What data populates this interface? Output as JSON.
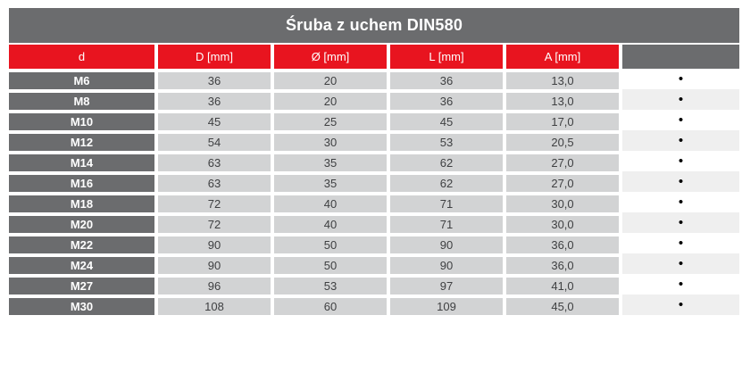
{
  "title": "Śruba z uchem DIN580",
  "colors": {
    "header_gray": "#6b6c6e",
    "accent_red": "#e8141f",
    "cell_gray": "#d2d3d4",
    "row_alt_white": "#ffffff",
    "row_alt_light": "#efefef",
    "cell_text": "#3f4042"
  },
  "table": {
    "columns": [
      {
        "key": "d",
        "label": "d"
      },
      {
        "key": "D-mm",
        "label": "D [mm]"
      },
      {
        "key": "O-mm",
        "label": "Ø [mm]"
      },
      {
        "key": "L-mm",
        "label": "L [mm]"
      },
      {
        "key": "A-mm",
        "label": "A [mm]"
      },
      {
        "key": "availability",
        "label": ""
      }
    ],
    "availability_marker": "•",
    "rows": [
      [
        "M6",
        "36",
        "20",
        "36",
        "13,0"
      ],
      [
        "M8",
        "36",
        "20",
        "36",
        "13,0"
      ],
      [
        "M10",
        "45",
        "25",
        "45",
        "17,0"
      ],
      [
        "M12",
        "54",
        "30",
        "53",
        "20,5"
      ],
      [
        "M14",
        "63",
        "35",
        "62",
        "27,0"
      ],
      [
        "M16",
        "63",
        "35",
        "62",
        "27,0"
      ],
      [
        "M18",
        "72",
        "40",
        "71",
        "30,0"
      ],
      [
        "M20",
        "72",
        "40",
        "71",
        "30,0"
      ],
      [
        "M22",
        "90",
        "50",
        "90",
        "36,0"
      ],
      [
        "M24",
        "90",
        "50",
        "90",
        "36,0"
      ],
      [
        "M27",
        "96",
        "53",
        "97",
        "41,0"
      ],
      [
        "M30",
        "108",
        "60",
        "109",
        "45,0"
      ]
    ]
  }
}
